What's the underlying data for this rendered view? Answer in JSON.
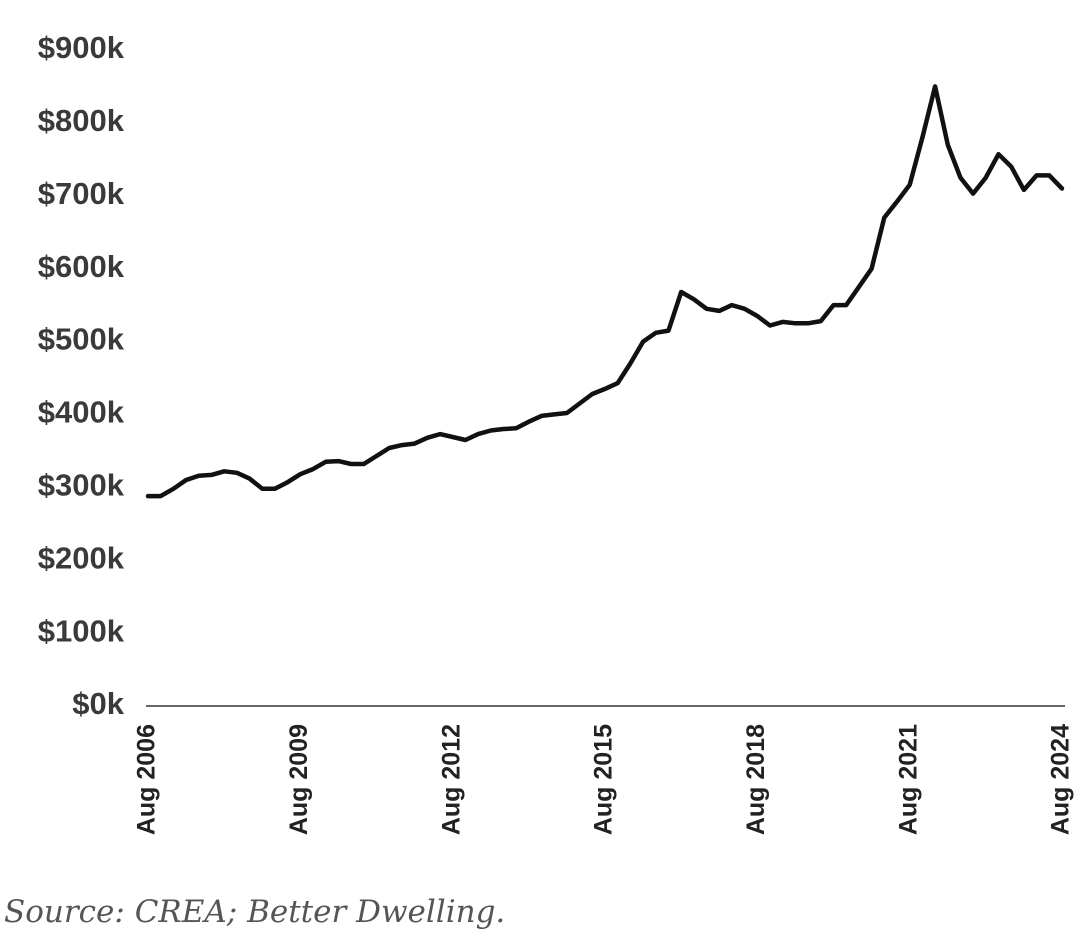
{
  "chart_data": {
    "type": "line",
    "source": "Source: CREA; Better Dwelling.",
    "categories": [
      "Aug 2006",
      null,
      null,
      null,
      null,
      null,
      null,
      null,
      null,
      null,
      null,
      null,
      "Aug 2009",
      null,
      null,
      null,
      null,
      null,
      null,
      null,
      null,
      null,
      null,
      null,
      "Aug 2012",
      null,
      null,
      null,
      null,
      null,
      null,
      null,
      null,
      null,
      null,
      null,
      "Aug 2015",
      null,
      null,
      null,
      null,
      null,
      null,
      null,
      null,
      null,
      null,
      null,
      "Aug 2018",
      null,
      null,
      null,
      null,
      null,
      null,
      null,
      null,
      null,
      null,
      null,
      "Aug 2021",
      null,
      null,
      null,
      null,
      null,
      null,
      null,
      null,
      null,
      null,
      null,
      "Aug 2024"
    ],
    "series": [
      {
        "color": "#111111",
        "values": [
          288,
          288,
          298,
          310,
          316,
          317,
          322,
          320,
          312,
          298,
          298,
          307,
          318,
          325,
          335,
          336,
          332,
          332,
          343,
          354,
          358,
          360,
          368,
          373,
          369,
          365,
          373,
          378,
          380,
          381,
          390,
          398,
          400,
          402,
          415,
          428,
          435,
          443,
          470,
          500,
          512,
          515,
          568,
          558,
          545,
          542,
          550,
          545,
          535,
          522,
          527,
          525,
          525,
          528,
          550,
          550,
          575,
          600,
          670,
          692,
          715,
          780,
          850,
          770,
          725,
          703,
          725,
          757,
          740,
          708,
          728,
          728,
          710
        ]
      }
    ],
    "ylim": [
      0,
      900
    ],
    "yticks": [
      {
        "value": 0,
        "label": "$0k"
      },
      {
        "value": 100,
        "label": "$100k"
      },
      {
        "value": 200,
        "label": "$200k"
      },
      {
        "value": 300,
        "label": "$300k"
      },
      {
        "value": 400,
        "label": "$400k"
      },
      {
        "value": 500,
        "label": "$500k"
      },
      {
        "value": 600,
        "label": "$600k"
      },
      {
        "value": 700,
        "label": "$700k"
      },
      {
        "value": 800,
        "label": "$800k"
      },
      {
        "value": 900,
        "label": "$900k"
      }
    ],
    "grid": false
  }
}
